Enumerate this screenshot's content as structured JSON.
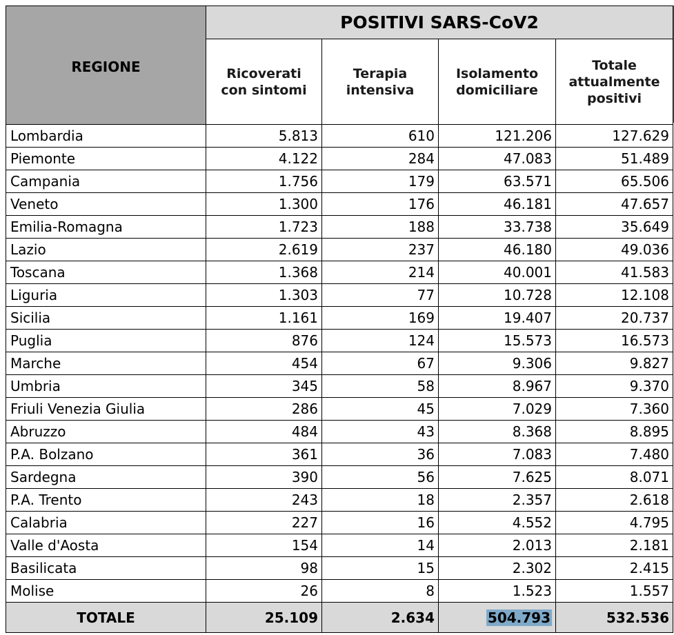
{
  "table": {
    "region_header": "REGIONE",
    "group_header": "POSITIVI SARS-CoV2",
    "columns": [
      "Ricoverati con sintomi",
      "Terapia intensiva",
      "Isolamento domiciliare",
      "Totale attualmente positivi"
    ],
    "rows": [
      {
        "region": "Lombardia",
        "values": [
          "5.813",
          "610",
          "121.206",
          "127.629"
        ]
      },
      {
        "region": "Piemonte",
        "values": [
          "4.122",
          "284",
          "47.083",
          "51.489"
        ]
      },
      {
        "region": "Campania",
        "values": [
          "1.756",
          "179",
          "63.571",
          "65.506"
        ]
      },
      {
        "region": "Veneto",
        "values": [
          "1.300",
          "176",
          "46.181",
          "47.657"
        ]
      },
      {
        "region": "Emilia-Romagna",
        "values": [
          "1.723",
          "188",
          "33.738",
          "35.649"
        ]
      },
      {
        "region": "Lazio",
        "values": [
          "2.619",
          "237",
          "46.180",
          "49.036"
        ]
      },
      {
        "region": "Toscana",
        "values": [
          "1.368",
          "214",
          "40.001",
          "41.583"
        ]
      },
      {
        "region": "Liguria",
        "values": [
          "1.303",
          "77",
          "10.728",
          "12.108"
        ]
      },
      {
        "region": "Sicilia",
        "values": [
          "1.161",
          "169",
          "19.407",
          "20.737"
        ]
      },
      {
        "region": "Puglia",
        "values": [
          "876",
          "124",
          "15.573",
          "16.573"
        ]
      },
      {
        "region": "Marche",
        "values": [
          "454",
          "67",
          "9.306",
          "9.827"
        ]
      },
      {
        "region": "Umbria",
        "values": [
          "345",
          "58",
          "8.967",
          "9.370"
        ]
      },
      {
        "region": "Friuli Venezia Giulia",
        "values": [
          "286",
          "45",
          "7.029",
          "7.360"
        ]
      },
      {
        "region": "Abruzzo",
        "values": [
          "484",
          "43",
          "8.368",
          "8.895"
        ]
      },
      {
        "region": "P.A. Bolzano",
        "values": [
          "361",
          "36",
          "7.083",
          "7.480"
        ]
      },
      {
        "region": "Sardegna",
        "values": [
          "390",
          "56",
          "7.625",
          "8.071"
        ]
      },
      {
        "region": "P.A. Trento",
        "values": [
          "243",
          "18",
          "2.357",
          "2.618"
        ]
      },
      {
        "region": "Calabria",
        "values": [
          "227",
          "16",
          "4.552",
          "4.795"
        ]
      },
      {
        "region": "Valle d'Aosta",
        "values": [
          "154",
          "14",
          "2.013",
          "2.181"
        ]
      },
      {
        "region": "Basilicata",
        "values": [
          "98",
          "15",
          "2.302",
          "2.415"
        ]
      },
      {
        "region": "Molise",
        "values": [
          "26",
          "8",
          "1.523",
          "1.557"
        ]
      }
    ],
    "total": {
      "label": "TOTALE",
      "values": [
        "25.109",
        "2.634",
        "504.793",
        "532.536"
      ],
      "highlighted_index": 2
    }
  },
  "colors": {
    "region_header_bg": "#a6a6a6",
    "group_header_bg": "#d9d9d9",
    "total_row_bg": "#d9d9d9",
    "selection_highlight": "#7ea9c9",
    "edge_accent": "#2e7d32"
  }
}
